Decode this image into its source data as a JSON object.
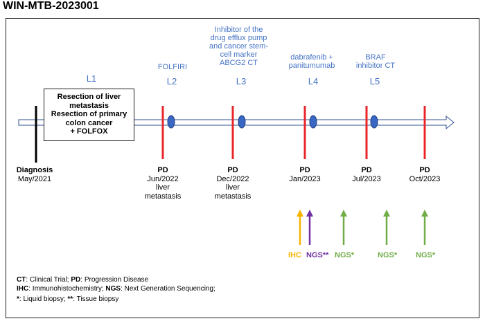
{
  "title": "WIN-MTB-2023001",
  "lines": {
    "l1": {
      "id": "L1"
    },
    "l2": {
      "id": "L2",
      "therapy": "FOLFIRI"
    },
    "l3": {
      "id": "L3",
      "therapy": [
        "Inhibitor of the",
        "drug efflux pump",
        "and cancer stem-",
        "cell marker",
        "ABCG2 CT"
      ]
    },
    "l4": {
      "id": "L4",
      "therapy": [
        "dabrafenib +",
        "panitumumab"
      ]
    },
    "l5": {
      "id": "L5",
      "therapy": [
        "BRAF",
        "inhibitor CT"
      ]
    }
  },
  "l1_box": [
    "Resection of liver",
    "metastasis",
    "Resection of primary",
    "colon cancer",
    "+ FOLFOX"
  ],
  "diagnosis": {
    "label": "Diagnosis",
    "date": "May/2021"
  },
  "events": [
    {
      "label": "PD",
      "date": "Jun/2022",
      "note": [
        "liver",
        "metastasis"
      ]
    },
    {
      "label": "PD",
      "date": "Dec/2022",
      "note": [
        "liver",
        "metastasis"
      ]
    },
    {
      "label": "PD",
      "date": "Jan/2023",
      "note": []
    },
    {
      "label": "PD",
      "date": "Jul/2023",
      "note": []
    },
    {
      "label": "PD",
      "date": "Oct/2023",
      "note": []
    }
  ],
  "tests": [
    {
      "text": "IHC",
      "mark": "",
      "color": "#f5b400"
    },
    {
      "text": "NGS",
      "mark": "**",
      "color": "#7030a0"
    },
    {
      "text": "NGS",
      "mark": "*",
      "color": "#70ad47"
    },
    {
      "text": "NGS",
      "mark": "*",
      "color": "#70ad47"
    },
    {
      "text": "NGS",
      "mark": "*",
      "color": "#70ad47"
    }
  ],
  "legend": {
    "row1": {
      "k1": "CT",
      "v1": ": Clinical Trial; ",
      "k2": "PD",
      "v2": ": Progression Disease"
    },
    "row2": {
      "k1": "IHC",
      "v1": ": Immunohistochemistry; ",
      "k2": "NGS",
      "v2": ": Next Generation Sequencing;"
    },
    "row3": {
      "k1": "*",
      "v1": ": Liquid biopsy; ",
      "k2": "**",
      "v2": ": Tissue biopsy"
    }
  },
  "colors": {
    "accent": "#4472c4",
    "pd_line": "#e8262a",
    "marker": "#3a67c4"
  }
}
